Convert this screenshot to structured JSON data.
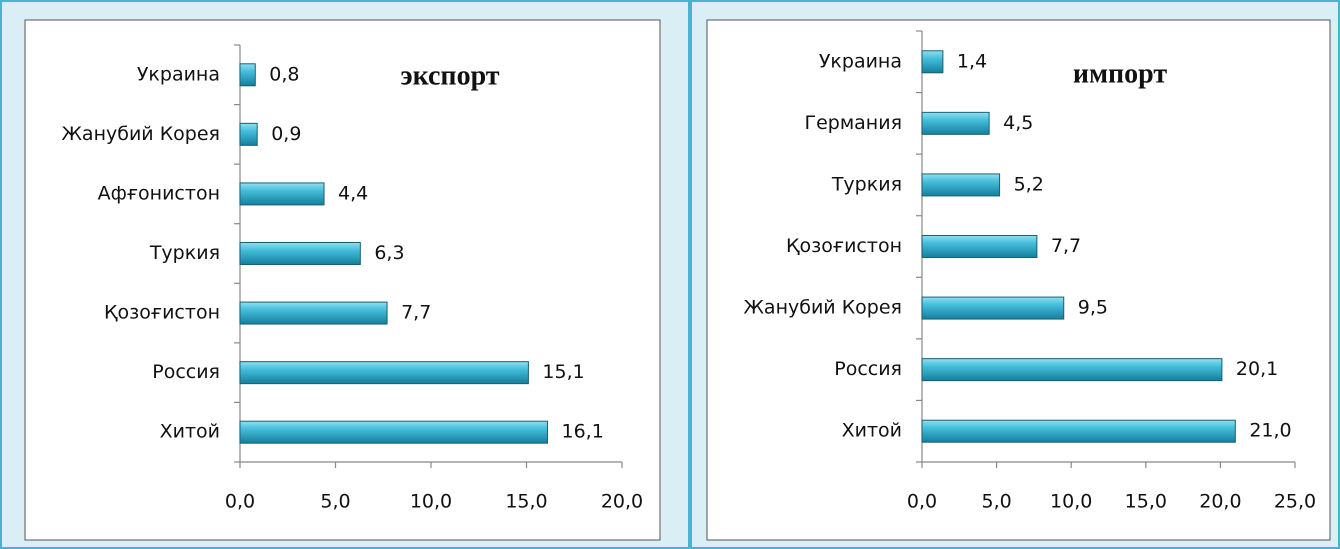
{
  "chart_data": [
    {
      "type": "bar",
      "orientation": "horizontal",
      "title": "экспорт",
      "color": "#31b0d0",
      "categories": [
        "Украина",
        "Жанубий Корея",
        "Афғонистон",
        "Туркия",
        "Қозоғистон",
        "Россия",
        "Хитой"
      ],
      "values": [
        0.8,
        0.9,
        4.4,
        6.3,
        7.7,
        15.1,
        16.1
      ],
      "value_labels": [
        "0,8",
        "0,9",
        "4,4",
        "6,3",
        "7,7",
        "15,1",
        "16,1"
      ],
      "xlim": [
        0,
        20
      ],
      "xticks": [
        {
          "value": 0,
          "label": "0,0"
        },
        {
          "value": 5,
          "label": "5,0"
        },
        {
          "value": 10,
          "label": "10,0"
        },
        {
          "value": 15,
          "label": "15,0"
        },
        {
          "value": 20,
          "label": "20,0"
        }
      ]
    },
    {
      "type": "bar",
      "orientation": "horizontal",
      "title": "импорт",
      "color": "#31b0d0",
      "categories": [
        "Украина",
        "Германия",
        "Туркия",
        "Қозоғистон",
        "Жанубий Корея",
        "Россия",
        "Хитой"
      ],
      "values": [
        1.4,
        4.5,
        5.2,
        7.7,
        9.5,
        20.1,
        21.0
      ],
      "value_labels": [
        "1,4",
        "4,5",
        "5,2",
        "7,7",
        "9,5",
        "20,1",
        "21,0"
      ],
      "xlim": [
        0,
        25
      ],
      "xticks": [
        {
          "value": 0,
          "label": "0,0"
        },
        {
          "value": 5,
          "label": "5,0"
        },
        {
          "value": 10,
          "label": "10,0"
        },
        {
          "value": 15,
          "label": "15,0"
        },
        {
          "value": 20,
          "label": "20,0"
        },
        {
          "value": 25,
          "label": "25,0"
        }
      ]
    }
  ]
}
